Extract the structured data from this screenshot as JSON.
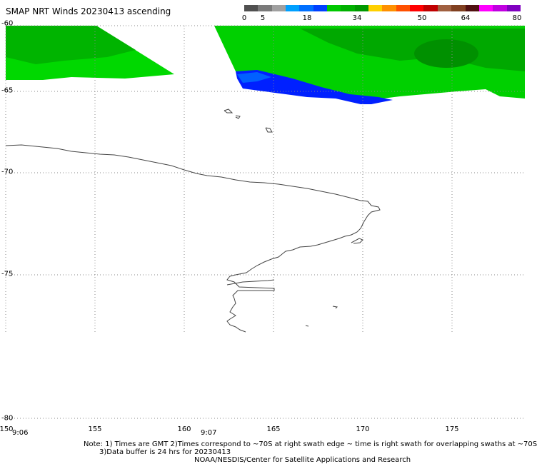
{
  "title": "SMAP NRT Winds 20230413 ascending",
  "colorbar": {
    "tick_labels": [
      "0",
      "5",
      "18",
      "34",
      "50",
      "64",
      "80"
    ],
    "colors": [
      "#505050",
      "#7a7a7a",
      "#a0a0a0",
      "#00a0ff",
      "#0070ff",
      "#0040ff",
      "#00c800",
      "#00b000",
      "#009800",
      "#ffd000",
      "#ff9000",
      "#ff5000",
      "#ff0000",
      "#c00000",
      "#a06040",
      "#804020",
      "#501010",
      "#ff00ff",
      "#c000e0",
      "#8000c0"
    ]
  },
  "map": {
    "lat_labels": [
      "-60",
      "-65",
      "-70",
      "-75",
      "-80"
    ],
    "lon_labels": [
      "150",
      "155",
      "160",
      "165",
      "170",
      "175"
    ],
    "time_labels": [
      "9:06",
      "9:07"
    ],
    "swath_colors": {
      "green": "#00d800",
      "dark_green": "#00a000",
      "blue": "#0020ff",
      "light_blue": "#0080ff"
    },
    "coastline_color": "#444444",
    "grid_color": "#888888"
  },
  "notes": {
    "line1": "Note: 1) Times are GMT  2)Times correspond to ~70S at right swath edge  ~ time is right swath for overlapping swaths at ~70S",
    "line2": "3)Data buffer is 24 hrs for 20230413",
    "line3": "NOAA/NESDIS/Center for Satellite Applications and Research"
  }
}
